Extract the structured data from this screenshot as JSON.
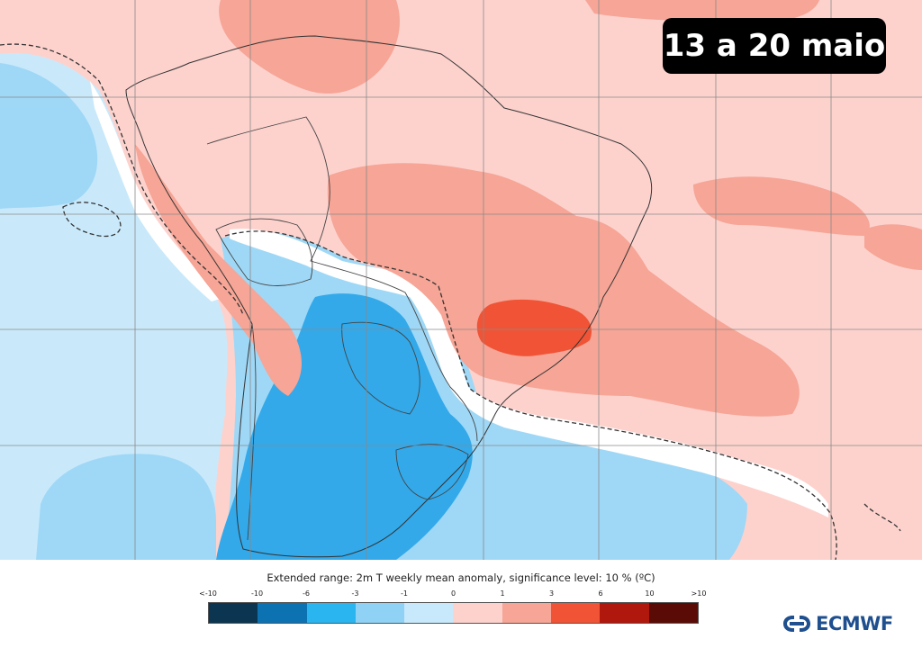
{
  "map": {
    "date_label": "13 a 20 maio",
    "palette": {
      "ocean_pale_blue": "#c9e9fb",
      "light_blue": "#9fd8f6",
      "mid_blue": "#5fc1f1",
      "strong_blue": "#33a9ea",
      "pale_pink": "#fdd2cd",
      "salmon": "#f6a596",
      "red_orange": "#f05335",
      "white_neutral": "#ffffff",
      "border_line": "#333333",
      "grid_line": "#8a8a8a"
    }
  },
  "legend": {
    "title": "Extended range: 2m T weekly mean anomaly, significance level: 10 % (ºC)",
    "tick_labels": [
      "<-10",
      "-10",
      "-6",
      "-3",
      "-1",
      "0",
      "1",
      "3",
      "6",
      "10",
      ">10"
    ],
    "colors": [
      "#0b3550",
      "#0d72b2",
      "#2ab4f0",
      "#90d2f6",
      "#c8e8fb",
      "#fdd2cd",
      "#f6a596",
      "#f05335",
      "#b0170d",
      "#5a0b06"
    ]
  },
  "logo": {
    "text": "ECMWF",
    "icon": "ecmwf-logo-icon",
    "color": "#1f4f8f"
  }
}
